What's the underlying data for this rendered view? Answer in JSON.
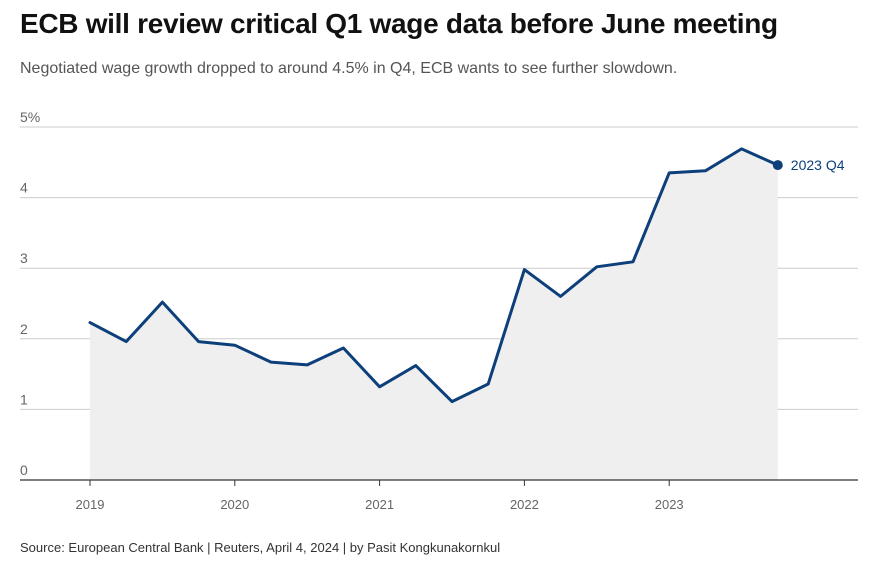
{
  "header": {
    "title": "ECB will review critical Q1 wage data before June meeting",
    "subtitle": "Negotiated wage growth dropped to around 4.5% in Q4, ECB wants to see further slowdown."
  },
  "footer": {
    "source": "Source: European Central Bank | Reuters, April 4, 2024 | by Pasit Kongkunakornkul"
  },
  "colors": {
    "line": "#0d3f7a",
    "area": "#efefef",
    "grid": "#cccccc",
    "axis": "#333333"
  },
  "chart_data": {
    "type": "area",
    "title": "ECB will review critical Q1 wage data before June meeting",
    "xlabel": "",
    "ylabel": "",
    "ylim": [
      0,
      5
    ],
    "y_ticks": [
      0,
      1,
      2,
      3,
      4,
      5
    ],
    "y_tick_labels": [
      "0",
      "1",
      "2",
      "3",
      "4",
      "5%"
    ],
    "x_ticks": [
      "2019",
      "2020",
      "2021",
      "2022",
      "2023"
    ],
    "grid": true,
    "end_label": "2023 Q4",
    "series": [
      {
        "name": "Negotiated wage growth",
        "x": [
          "2019 Q1",
          "2019 Q2",
          "2019 Q3",
          "2019 Q4",
          "2020 Q1",
          "2020 Q2",
          "2020 Q3",
          "2020 Q4",
          "2021 Q1",
          "2021 Q2",
          "2021 Q3",
          "2021 Q4",
          "2022 Q1",
          "2022 Q2",
          "2022 Q3",
          "2022 Q4",
          "2023 Q1",
          "2023 Q2",
          "2023 Q3",
          "2023 Q4"
        ],
        "values": [
          2.23,
          1.96,
          2.52,
          1.96,
          1.91,
          1.67,
          1.63,
          1.87,
          1.32,
          1.62,
          1.11,
          1.36,
          2.98,
          2.6,
          3.02,
          3.09,
          4.35,
          4.38,
          4.69,
          4.46
        ]
      }
    ]
  }
}
